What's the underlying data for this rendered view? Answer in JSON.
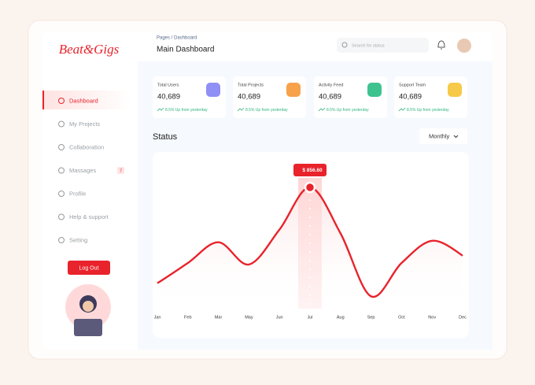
{
  "brand": "Beat&Gigs",
  "header": {
    "breadcrumb": "Pages / Dashboard",
    "title": "Main Dashboard",
    "search_placeholder": "Search for status"
  },
  "sidebar": {
    "menu": [
      "Dashboard",
      "My Projects",
      "Collaboration",
      "Massages",
      "Profile",
      "Help & support",
      "Setting"
    ],
    "badge": "7",
    "logout": "Log Out"
  },
  "cards": [
    {
      "title": "Total Users",
      "value": "40,689",
      "change": "8.5% Up from yesterday"
    },
    {
      "title": "Total Projects",
      "value": "40,689",
      "change": "8.5% Up from yesterday"
    },
    {
      "title": "Activity Feed",
      "value": "40,689",
      "change": "8.5% Up from yesterday"
    },
    {
      "title": "Support Team",
      "value": "40,689",
      "change": "8.5% Up from yesterday"
    }
  ],
  "status": {
    "title": "Status",
    "period": "Monthly"
  },
  "chart_data": {
    "type": "line",
    "color": "#e8232b",
    "categories": [
      "Jan",
      "Feb",
      "Mar",
      "May",
      "Jun",
      "Jul",
      "Aug",
      "Sep",
      "Oct",
      "Nov",
      "Dec"
    ],
    "values": [
      214,
      349,
      488,
      339,
      573,
      856.6,
      548,
      125,
      349,
      498,
      398
    ],
    "value_labels": [
      null,
      null,
      null,
      null,
      null,
      "$ 856.60",
      null,
      null,
      null,
      null,
      null
    ]
  }
}
